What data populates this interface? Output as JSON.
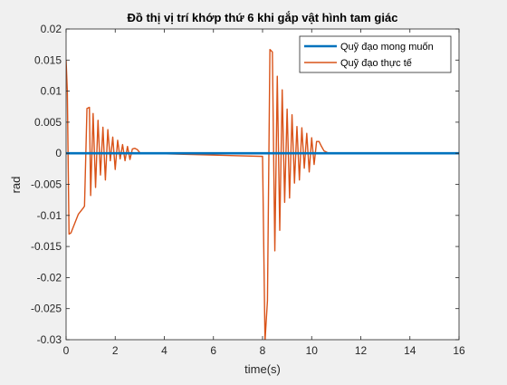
{
  "chart_data": {
    "type": "line",
    "title": "Đồ thị vị trí khớp thứ 6 khi gắp vật hình tam giác",
    "xlabel": "time(s)",
    "ylabel": "rad",
    "xlim": [
      0,
      16
    ],
    "ylim": [
      -0.03,
      0.02
    ],
    "xticks": [
      0,
      2,
      4,
      6,
      8,
      10,
      12,
      14,
      16
    ],
    "xtick_labels": [
      "0",
      "2",
      "4",
      "6",
      "8",
      "10",
      "12",
      "14",
      "16"
    ],
    "yticks": [
      0.02,
      0.015,
      0.01,
      0.005,
      0,
      -0.005,
      -0.01,
      -0.015,
      -0.02,
      -0.025,
      -0.03
    ],
    "ytick_labels": [
      "0.02",
      "0.015",
      "0.01",
      "0.005",
      "0",
      "-0.005",
      "-0.01",
      "-0.015",
      "-0.02",
      "-0.025",
      "-0.03"
    ],
    "grid": false,
    "legend_position": "top-right",
    "series": [
      {
        "name": "Quỹ đạo mong muốn",
        "color": "#0072BD",
        "x": [
          0,
          16
        ],
        "y": [
          0,
          0
        ]
      },
      {
        "name": "Quỹ đạo thực tế",
        "color": "#D95319",
        "x": [
          0,
          0.05,
          0.12,
          0.2,
          0.3,
          0.5,
          0.7,
          0.75,
          0.85,
          0.95,
          1.0,
          1.1,
          1.2,
          1.3,
          1.4,
          1.5,
          1.6,
          1.7,
          1.8,
          1.9,
          2.0,
          2.1,
          2.2,
          2.3,
          2.4,
          2.5,
          2.6,
          2.7,
          2.8,
          2.9,
          3.0,
          3.1,
          3.2,
          8.0,
          8.1,
          8.2,
          8.3,
          8.4,
          8.5,
          8.6,
          8.7,
          8.8,
          8.9,
          9.0,
          9.1,
          9.2,
          9.3,
          9.4,
          9.5,
          9.6,
          9.7,
          9.8,
          9.9,
          10.0,
          10.1,
          10.2,
          10.3,
          10.4,
          10.5,
          10.6,
          10.7,
          10.8,
          16
        ],
        "y": [
          0.015,
          0.01,
          -0.013,
          -0.0128,
          -0.0118,
          -0.0098,
          -0.0088,
          -0.0085,
          0.0072,
          0.0074,
          -0.0068,
          0.0064,
          -0.0055,
          0.0053,
          -0.0035,
          0.0042,
          -0.0043,
          0.0038,
          -0.0012,
          0.0026,
          -0.0026,
          0.0021,
          -0.0009,
          0.0014,
          -0.0012,
          0.0011,
          -0.001,
          0.0007,
          0.0008,
          0.0006,
          0.0001,
          0,
          0,
          -0.0005,
          -0.0302,
          -0.0237,
          0.0167,
          0.0163,
          -0.0157,
          0.0124,
          -0.0124,
          0.0102,
          -0.0079,
          0.0071,
          -0.0072,
          0.0062,
          -0.0048,
          0.0043,
          -0.0043,
          0.0041,
          -0.0024,
          0.0032,
          -0.003,
          0.0025,
          -0.0018,
          0.0019,
          0.0019,
          0.0011,
          0.0004,
          0.0002,
          0,
          0,
          0
        ]
      }
    ]
  }
}
